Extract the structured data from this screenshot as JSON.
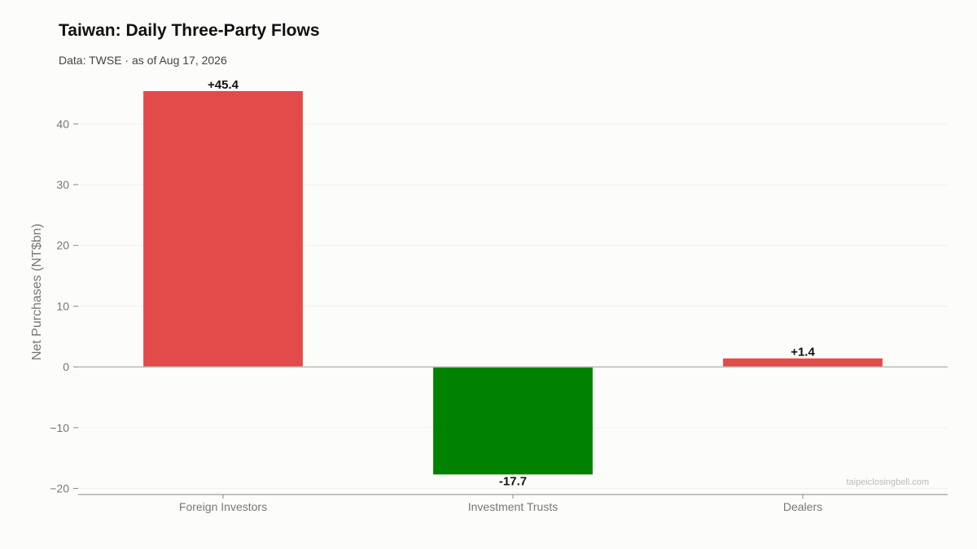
{
  "header": {
    "title": "Taiwan: Daily Three-Party Flows",
    "subtitle": "Data: TWSE · as of Aug 17, 2026"
  },
  "watermark": "taipeiclosingbell.com",
  "colors": {
    "positive": "#e34a4a",
    "negative": "#008200",
    "grid": "#f0f0ee",
    "zero_line": "#bbbbbb",
    "axis": "#888888"
  },
  "chart_data": {
    "type": "bar",
    "title": "Taiwan: Daily Three-Party Flows",
    "subtitle": "Data: TWSE · as of Aug 17, 2026",
    "categories": [
      "Foreign Investors",
      "Investment Trusts",
      "Dealers"
    ],
    "values": [
      45.4,
      -17.7,
      1.4
    ],
    "data_labels": [
      "+45.4",
      "-17.7",
      "+1.4"
    ],
    "xlabel": "",
    "ylabel": "Net Purchases (NT$bn)",
    "ylim": [
      -21,
      47
    ],
    "yticks": [
      -20,
      -10,
      0,
      10,
      20,
      30,
      40
    ],
    "ytick_labels": [
      "−20",
      "−10",
      "0",
      "10",
      "20",
      "30",
      "40"
    ],
    "grid": true,
    "legend": "none"
  }
}
